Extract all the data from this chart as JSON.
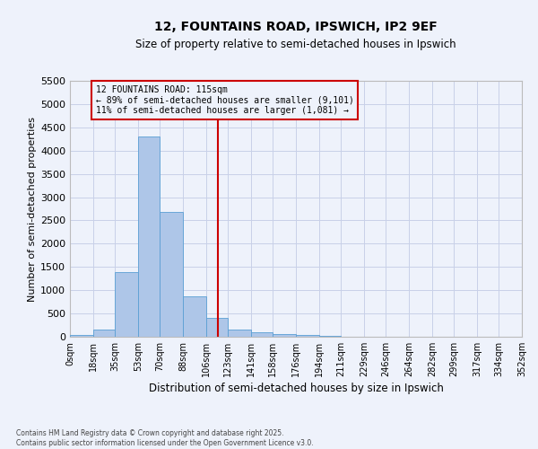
{
  "title": "12, FOUNTAINS ROAD, IPSWICH, IP2 9EF",
  "subtitle": "Size of property relative to semi-detached houses in Ipswich",
  "xlabel": "Distribution of semi-detached houses by size in Ipswich",
  "ylabel": "Number of semi-detached properties",
  "annotation_line1": "12 FOUNTAINS ROAD: 115sqm",
  "annotation_line2": "← 89% of semi-detached houses are smaller (9,101)",
  "annotation_line3": "11% of semi-detached houses are larger (1,081) →",
  "footer_line1": "Contains HM Land Registry data © Crown copyright and database right 2025.",
  "footer_line2": "Contains public sector information licensed under the Open Government Licence v3.0.",
  "property_size": 115,
  "bar_color": "#aec6e8",
  "bar_edge_color": "#5a9fd4",
  "vline_color": "#cc0000",
  "annotation_box_color": "#cc0000",
  "background_color": "#eef2fb",
  "grid_color": "#c8d0e8",
  "bin_edges": [
    0,
    18,
    35,
    53,
    70,
    88,
    106,
    123,
    141,
    158,
    176,
    194,
    211,
    229,
    246,
    264,
    282,
    299,
    317,
    334,
    352
  ],
  "bin_labels": [
    "0sqm",
    "18sqm",
    "35sqm",
    "53sqm",
    "70sqm",
    "88sqm",
    "106sqm",
    "123sqm",
    "141sqm",
    "158sqm",
    "176sqm",
    "194sqm",
    "211sqm",
    "229sqm",
    "246sqm",
    "264sqm",
    "282sqm",
    "299sqm",
    "317sqm",
    "334sqm",
    "352sqm"
  ],
  "counts": [
    30,
    150,
    1380,
    4300,
    2680,
    860,
    400,
    155,
    90,
    65,
    30,
    10,
    5,
    3,
    2,
    1,
    1,
    0,
    0,
    0
  ],
  "ylim": [
    0,
    5500
  ],
  "yticks": [
    0,
    500,
    1000,
    1500,
    2000,
    2500,
    3000,
    3500,
    4000,
    4500,
    5000,
    5500
  ]
}
